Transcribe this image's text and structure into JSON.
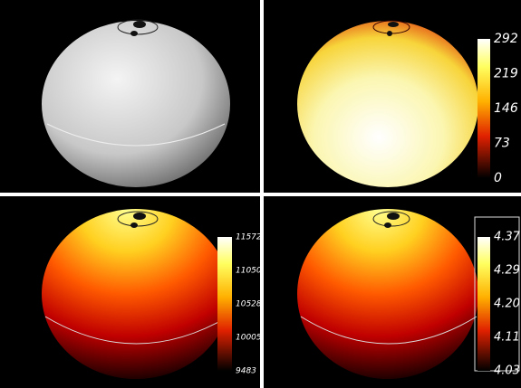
{
  "panels": [
    {
      "colorbar": null
    },
    {
      "colorbar": {
        "ticks": [
          "292",
          "219",
          "146",
          "73",
          "0"
        ]
      }
    },
    {
      "colorbar": {
        "ticks": [
          "11572",
          "11050",
          "10528",
          "10005",
          "9483"
        ]
      }
    },
    {
      "colorbar": {
        "ticks": [
          "4.37",
          "4.29",
          "4.20",
          "4.11",
          "4.03"
        ]
      }
    }
  ]
}
